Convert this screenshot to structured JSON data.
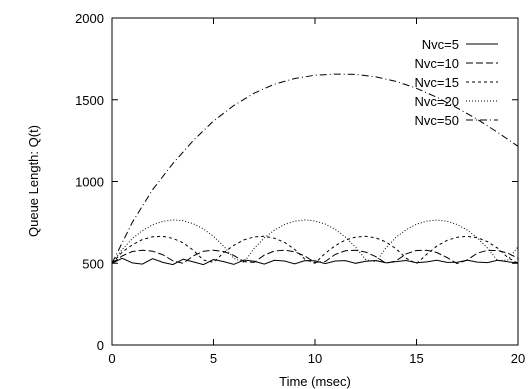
{
  "chart_data": {
    "type": "line",
    "title": "",
    "xlabel": "Time (msec)",
    "ylabel": "Queue Length: Q(t)",
    "xlim": [
      0,
      20
    ],
    "ylim": [
      0,
      2000
    ],
    "xticks": [
      0,
      5,
      10,
      15,
      20
    ],
    "yticks": [
      0,
      500,
      1000,
      1500,
      2000
    ],
    "xtick_labels": [
      "0",
      "5",
      "10",
      "15",
      "20"
    ],
    "ytick_labels": [
      "0",
      "500",
      "1000",
      "1500",
      "2000"
    ],
    "grid": false,
    "legend_position": "top-right",
    "series": [
      {
        "name": "Nvc=5",
        "dash": "solid",
        "x": [
          0,
          0.5,
          1,
          1.5,
          2,
          2.5,
          3,
          3.5,
          4,
          4.5,
          5,
          5.5,
          6,
          6.5,
          7,
          7.5,
          8,
          8.5,
          9,
          9.5,
          10,
          10.5,
          11,
          11.5,
          12,
          12.5,
          13,
          13.5,
          14,
          14.5,
          15,
          15.5,
          16,
          16.5,
          17,
          17.5,
          18,
          18.5,
          19,
          19.5,
          20
        ],
        "y": [
          500,
          530,
          502,
          495,
          528,
          505,
          492,
          525,
          508,
          492,
          523,
          510,
          493,
          520,
          512,
          495,
          518,
          514,
          496,
          516,
          515,
          498,
          514,
          516,
          500,
          512,
          517,
          502,
          510,
          517,
          503,
          508,
          518,
          505,
          506,
          518,
          507,
          504,
          518,
          509,
          502
        ]
      },
      {
        "name": "Nvc=10",
        "dash": "dashed",
        "x": [
          0,
          0.5,
          1,
          1.5,
          2,
          2.5,
          3,
          3.5,
          4,
          4.5,
          5,
          5.5,
          6,
          6.5,
          7,
          7.5,
          8,
          8.5,
          9,
          9.5,
          10,
          10.5,
          11,
          11.5,
          12,
          12.5,
          13,
          13.5,
          14,
          14.5,
          15,
          15.5,
          16,
          16.5,
          17,
          17.5,
          18,
          18.5,
          19,
          19.5,
          20
        ],
        "y": [
          500,
          545,
          572,
          580,
          574,
          552,
          515,
          500,
          545,
          573,
          580,
          572,
          548,
          510,
          505,
          550,
          575,
          580,
          570,
          544,
          505,
          510,
          554,
          576,
          580,
          568,
          540,
          500,
          515,
          558,
          578,
          579,
          566,
          535,
          498,
          520,
          562,
          579,
          578,
          562,
          530
        ]
      },
      {
        "name": "Nvc=15",
        "dash": "short-dashed",
        "x": [
          0,
          0.5,
          1,
          1.5,
          2,
          2.5,
          3,
          3.5,
          4,
          4.5,
          5,
          5.5,
          6,
          6.5,
          7,
          7.5,
          8,
          8.5,
          9,
          9.5,
          10,
          10.5,
          11,
          11.5,
          12,
          12.5,
          13,
          13.5,
          14,
          14.5,
          15,
          15.5,
          16,
          16.5,
          17,
          17.5,
          18,
          18.5,
          19,
          19.5,
          20
        ],
        "y": [
          500,
          568,
          612,
          645,
          662,
          665,
          652,
          625,
          580,
          520,
          505,
          565,
          610,
          643,
          661,
          665,
          653,
          628,
          585,
          525,
          500,
          560,
          608,
          642,
          660,
          665,
          655,
          630,
          588,
          530,
          498,
          555,
          605,
          640,
          659,
          665,
          656,
          632,
          592,
          535,
          500
        ]
      },
      {
        "name": "Nvc=20",
        "dash": "dotted",
        "x": [
          0,
          0.5,
          1,
          1.5,
          2,
          2.5,
          3,
          3.5,
          4,
          4.5,
          5,
          5.5,
          6,
          6.5,
          7,
          7.5,
          8,
          8.5,
          9,
          9.5,
          10,
          10.5,
          11,
          11.5,
          12,
          12.5,
          13,
          13.5,
          14,
          14.5,
          15,
          15.5,
          16,
          16.5,
          17,
          17.5,
          18,
          18.5,
          19,
          19.5,
          20
        ],
        "y": [
          500,
          585,
          650,
          700,
          735,
          756,
          765,
          760,
          742,
          710,
          665,
          605,
          530,
          505,
          590,
          655,
          703,
          737,
          757,
          765,
          759,
          740,
          707,
          660,
          598,
          522,
          508,
          595,
          660,
          706,
          739,
          758,
          764,
          757,
          737,
          703,
          655,
          592,
          515,
          520,
          600
        ]
      },
      {
        "name": "Nvc=50",
        "dash": "dash-dot",
        "x": [
          0,
          1,
          2,
          3,
          4,
          5,
          6,
          7,
          8,
          9,
          10,
          11,
          12,
          13,
          14,
          15,
          16,
          17,
          18,
          19,
          20
        ],
        "y": [
          500,
          750,
          950,
          1110,
          1250,
          1370,
          1465,
          1540,
          1595,
          1630,
          1650,
          1657,
          1655,
          1640,
          1612,
          1570,
          1515,
          1450,
          1380,
          1300,
          1215
        ]
      }
    ]
  }
}
